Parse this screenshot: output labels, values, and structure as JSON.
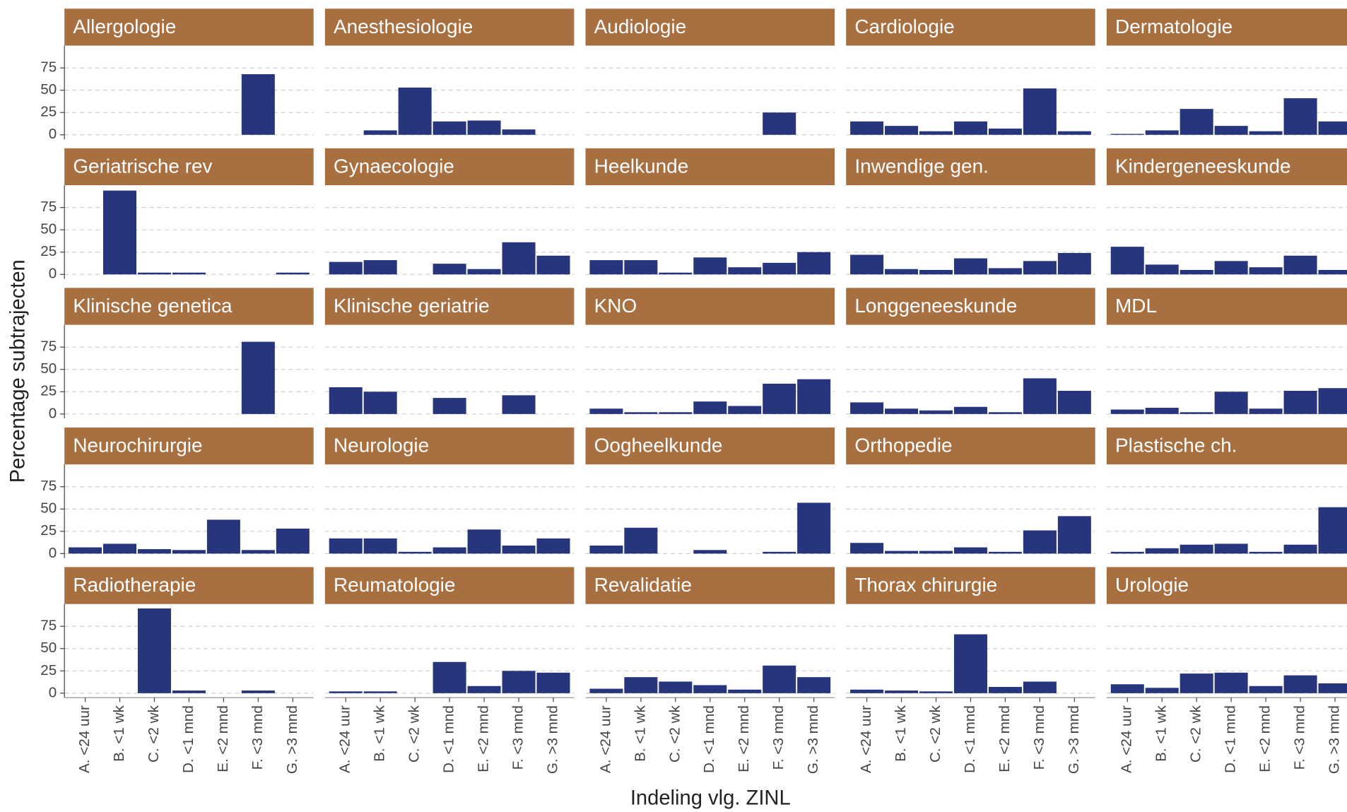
{
  "chart_data": {
    "type": "bar",
    "x_label": "Indeling vlg. ZINL",
    "y_label": "Percentage subtrajecten",
    "categories": [
      "A. <24 uur",
      "B. <1 wk",
      "C. <2 wk",
      "D. <1 mnd",
      "E. <2 mnd",
      "F. <3 mnd",
      "G. >3 mnd"
    ],
    "color": "#27357c",
    "strip_color": "#a86f40",
    "grid": true,
    "ylim": [
      -5,
      100
    ],
    "yticks": [
      0,
      25,
      50,
      75
    ],
    "panels": [
      {
        "name": "Allergologie",
        "values": [
          null,
          null,
          null,
          null,
          null,
          68,
          null
        ]
      },
      {
        "name": "Anesthesiologie",
        "values": [
          null,
          5,
          53,
          15,
          16,
          6,
          null
        ]
      },
      {
        "name": "Audiologie",
        "values": [
          null,
          null,
          null,
          null,
          null,
          25,
          null
        ]
      },
      {
        "name": "Cardiologie",
        "values": [
          15,
          10,
          4,
          15,
          7,
          52,
          4
        ]
      },
      {
        "name": "Dermatologie",
        "values": [
          1,
          5,
          29,
          10,
          4,
          41,
          15
        ]
      },
      {
        "name": "Geriatrische rev",
        "values": [
          null,
          94,
          2,
          2,
          null,
          null,
          2
        ]
      },
      {
        "name": "Gynaecologie",
        "values": [
          14,
          16,
          null,
          12,
          6,
          36,
          21
        ]
      },
      {
        "name": "Heelkunde",
        "values": [
          16,
          16,
          2,
          19,
          8,
          13,
          25
        ]
      },
      {
        "name": "Inwendige gen.",
        "values": [
          22,
          6,
          5,
          18,
          7,
          15,
          24
        ]
      },
      {
        "name": "Kindergeneeskunde",
        "values": [
          31,
          11,
          5,
          15,
          8,
          21,
          5
        ]
      },
      {
        "name": "Klinische genetica",
        "values": [
          null,
          null,
          null,
          null,
          null,
          81,
          null
        ]
      },
      {
        "name": "Klinische geriatrie",
        "values": [
          30,
          25,
          null,
          18,
          null,
          21,
          null
        ]
      },
      {
        "name": "KNO",
        "values": [
          6,
          2,
          2,
          14,
          9,
          34,
          39
        ]
      },
      {
        "name": "Longgeneeskunde",
        "values": [
          13,
          6,
          4,
          8,
          2,
          40,
          26
        ]
      },
      {
        "name": "MDL",
        "values": [
          5,
          7,
          2,
          25,
          6,
          26,
          29
        ]
      },
      {
        "name": "Neurochirurgie",
        "values": [
          7,
          11,
          5,
          4,
          38,
          4,
          28
        ]
      },
      {
        "name": "Neurologie",
        "values": [
          17,
          17,
          2,
          7,
          27,
          9,
          17
        ]
      },
      {
        "name": "Oogheelkunde",
        "values": [
          9,
          29,
          null,
          4,
          null,
          2,
          57
        ]
      },
      {
        "name": "Orthopedie",
        "values": [
          12,
          3,
          3,
          7,
          2,
          26,
          42
        ]
      },
      {
        "name": "Plastische ch.",
        "values": [
          2,
          6,
          10,
          11,
          2,
          10,
          52
        ]
      },
      {
        "name": "Radiotherapie",
        "values": [
          null,
          null,
          95,
          3,
          null,
          3,
          null
        ]
      },
      {
        "name": "Reumatologie",
        "values": [
          2,
          2,
          null,
          35,
          8,
          25,
          23
        ]
      },
      {
        "name": "Revalidatie",
        "values": [
          5,
          18,
          13,
          9,
          4,
          31,
          18
        ]
      },
      {
        "name": "Thorax chirurgie",
        "values": [
          4,
          3,
          2,
          66,
          7,
          13,
          null
        ]
      },
      {
        "name": "Urologie",
        "values": [
          10,
          6,
          22,
          23,
          8,
          20,
          11
        ]
      }
    ]
  }
}
